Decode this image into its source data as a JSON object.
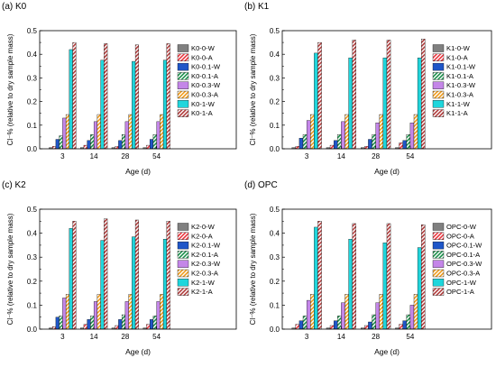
{
  "figure": {
    "series_styles": [
      {
        "color": "#808080",
        "hatch": false
      },
      {
        "color": "#e8343d",
        "hatch": true
      },
      {
        "color": "#1f56c8",
        "hatch": false
      },
      {
        "color": "#1a8f4a",
        "hatch": true
      },
      {
        "color": "#c486e8",
        "hatch": false
      },
      {
        "color": "#ef9a1a",
        "hatch": true
      },
      {
        "color": "#1fd6dc",
        "hatch": false
      },
      {
        "color": "#b03a3a",
        "hatch": true
      }
    ]
  },
  "chart_data": [
    {
      "type": "bar",
      "title": "(a) K0",
      "xlabel": "Age (d)",
      "ylabel": "Cl⁻% (relative to dry sample mass)",
      "ylim": [
        0,
        0.5
      ],
      "yticks": [
        "0.0",
        "0.1",
        "0.2",
        "0.3",
        "0.4",
        "0.5"
      ],
      "categories": [
        "3",
        "14",
        "28",
        "54"
      ],
      "legend_position": "right",
      "grid": false,
      "series": [
        {
          "name": "K0-0-W",
          "values": [
            0.005,
            0.005,
            0.005,
            0.005
          ]
        },
        {
          "name": "K0-0-A",
          "values": [
            0.01,
            0.015,
            0.01,
            0.015
          ]
        },
        {
          "name": "K0-0.1-W",
          "values": [
            0.04,
            0.035,
            0.035,
            0.04
          ]
        },
        {
          "name": "K0-0.1-A",
          "values": [
            0.055,
            0.06,
            0.06,
            0.06
          ]
        },
        {
          "name": "K0-0.3-W",
          "values": [
            0.13,
            0.115,
            0.115,
            0.115
          ]
        },
        {
          "name": "K0-0.3-A",
          "values": [
            0.145,
            0.145,
            0.145,
            0.145
          ]
        },
        {
          "name": "K0-1-W",
          "values": [
            0.42,
            0.375,
            0.37,
            0.375
          ]
        },
        {
          "name": "K0-1-A",
          "values": [
            0.45,
            0.445,
            0.44,
            0.445
          ]
        }
      ]
    },
    {
      "type": "bar",
      "title": "(b) K1",
      "xlabel": "Age (d)",
      "ylabel": "Cl⁻% (relative to dry sample mass)",
      "ylim": [
        0,
        0.5
      ],
      "yticks": [
        "0.0",
        "0.1",
        "0.2",
        "0.3",
        "0.4",
        "0.5"
      ],
      "categories": [
        "3",
        "14",
        "28",
        "54"
      ],
      "legend_position": "right",
      "grid": false,
      "series": [
        {
          "name": "K1-0-W",
          "values": [
            0.005,
            0.005,
            0.005,
            0.005
          ]
        },
        {
          "name": "K1-0-A",
          "values": [
            0.01,
            0.015,
            0.01,
            0.025
          ]
        },
        {
          "name": "K1-0.1-W",
          "values": [
            0.045,
            0.035,
            0.04,
            0.035
          ]
        },
        {
          "name": "K1-0.1-A",
          "values": [
            0.06,
            0.06,
            0.06,
            0.06
          ]
        },
        {
          "name": "K1-0.3-W",
          "values": [
            0.12,
            0.115,
            0.11,
            0.11
          ]
        },
        {
          "name": "K1-0.3-A",
          "values": [
            0.145,
            0.145,
            0.145,
            0.145
          ]
        },
        {
          "name": "K1-1-W",
          "values": [
            0.405,
            0.385,
            0.385,
            0.385
          ]
        },
        {
          "name": "K1-1-A",
          "values": [
            0.45,
            0.46,
            0.46,
            0.465
          ]
        }
      ]
    },
    {
      "type": "bar",
      "title": "(c) K2",
      "xlabel": "Age (d)",
      "ylabel": "Cl⁻% (relative to dry sample mass)",
      "ylim": [
        0,
        0.5
      ],
      "yticks": [
        "0.0",
        "0.1",
        "0.2",
        "0.3",
        "0.4",
        "0.5"
      ],
      "categories": [
        "3",
        "14",
        "28",
        "54"
      ],
      "legend_position": "right",
      "grid": false,
      "series": [
        {
          "name": "K2-0-W",
          "values": [
            0.005,
            0.005,
            0.005,
            0.005
          ]
        },
        {
          "name": "K2-0-A",
          "values": [
            0.01,
            0.02,
            0.015,
            0.02
          ]
        },
        {
          "name": "K2-0.1-W",
          "values": [
            0.05,
            0.04,
            0.04,
            0.04
          ]
        },
        {
          "name": "K2-0.1-A",
          "values": [
            0.055,
            0.055,
            0.06,
            0.055
          ]
        },
        {
          "name": "K2-0.3-W",
          "values": [
            0.13,
            0.115,
            0.115,
            0.115
          ]
        },
        {
          "name": "K2-0.3-A",
          "values": [
            0.145,
            0.145,
            0.145,
            0.145
          ]
        },
        {
          "name": "K2-1-W",
          "values": [
            0.42,
            0.37,
            0.385,
            0.375
          ]
        },
        {
          "name": "K2-1-A",
          "values": [
            0.45,
            0.46,
            0.455,
            0.45
          ]
        }
      ]
    },
    {
      "type": "bar",
      "title": "(d) OPC",
      "xlabel": "Age (d)",
      "ylabel": "Cl⁻% (relative to dry sample mass)",
      "ylim": [
        0,
        0.5
      ],
      "yticks": [
        "0.0",
        "0.1",
        "0.2",
        "0.3",
        "0.4",
        "0.5"
      ],
      "categories": [
        "3",
        "14",
        "28",
        "54"
      ],
      "legend_position": "right",
      "grid": false,
      "series": [
        {
          "name": "OPC-0-W",
          "values": [
            0.005,
            0.005,
            0.005,
            0.005
          ]
        },
        {
          "name": "OPC-0-A",
          "values": [
            0.02,
            0.015,
            0.015,
            0.02
          ]
        },
        {
          "name": "OPC-0.1-W",
          "values": [
            0.035,
            0.035,
            0.03,
            0.035
          ]
        },
        {
          "name": "OPC-0.1-A",
          "values": [
            0.055,
            0.055,
            0.06,
            0.06
          ]
        },
        {
          "name": "OPC-0.3-W",
          "values": [
            0.12,
            0.11,
            0.11,
            0.1
          ]
        },
        {
          "name": "OPC-0.3-A",
          "values": [
            0.145,
            0.145,
            0.145,
            0.145
          ]
        },
        {
          "name": "OPC-1-W",
          "values": [
            0.425,
            0.375,
            0.36,
            0.34
          ]
        },
        {
          "name": "OPC-1-A",
          "values": [
            0.45,
            0.44,
            0.44,
            0.435
          ]
        }
      ]
    }
  ]
}
